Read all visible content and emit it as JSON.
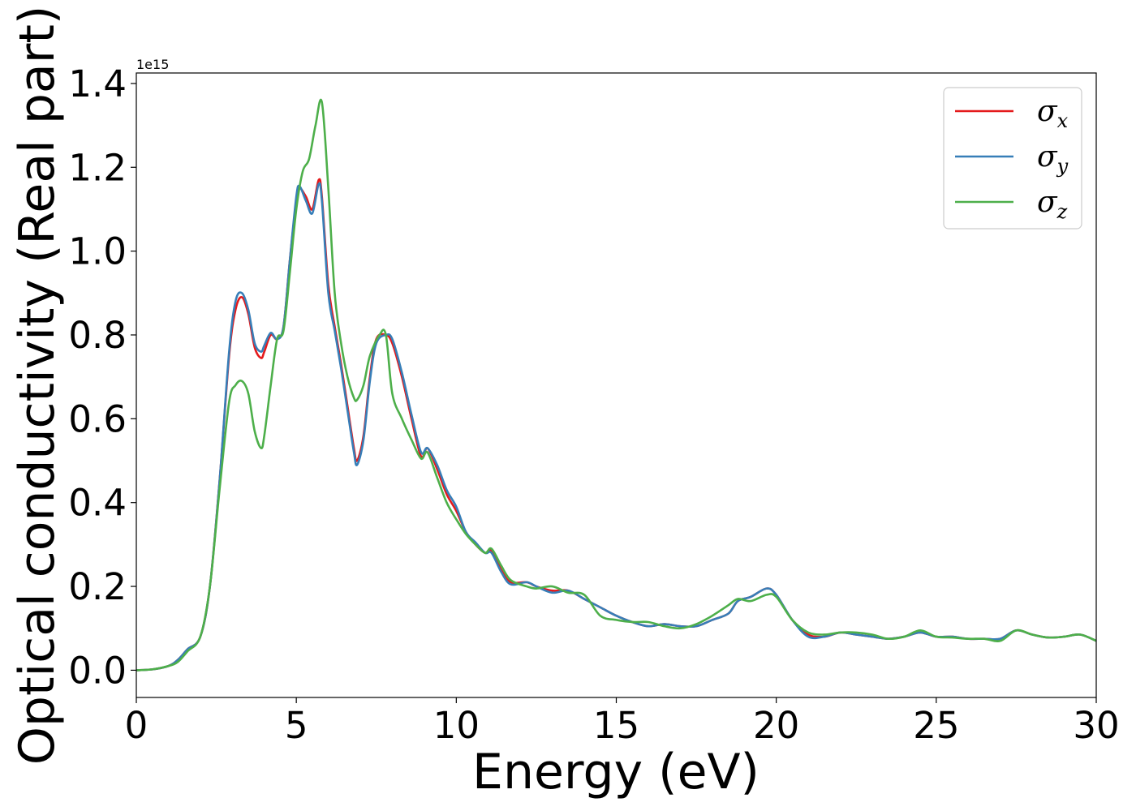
{
  "chart_data": {
    "type": "line",
    "xlabel": "Energy (eV)",
    "ylabel": "Optical conductivity (Real part)",
    "y_offset_label": "1e15",
    "xlim": [
      0,
      30
    ],
    "ylim": [
      -0.065,
      1.425
    ],
    "xticks": [
      0,
      5,
      10,
      15,
      20,
      25,
      30
    ],
    "xtick_labels": [
      "0",
      "5",
      "10",
      "15",
      "20",
      "25",
      "30"
    ],
    "yticks": [
      0.0,
      0.2,
      0.4,
      0.6,
      0.8,
      1.0,
      1.2,
      1.4
    ],
    "ytick_labels": [
      "0.0",
      "0.2",
      "0.4",
      "0.6",
      "0.8",
      "1.0",
      "1.2",
      "1.4"
    ],
    "grid": false,
    "legend_position": "top-right",
    "series": [
      {
        "name": "σx",
        "symbol": "σ",
        "subscript": "x",
        "color": "#e41a1c",
        "x": [
          0,
          0.5,
          1.0,
          1.3,
          1.6,
          2.0,
          2.3,
          2.6,
          2.9,
          3.1,
          3.3,
          3.5,
          3.7,
          3.9,
          4.0,
          4.2,
          4.4,
          4.6,
          4.8,
          5.0,
          5.1,
          5.3,
          5.5,
          5.7,
          5.8,
          6.0,
          6.2,
          6.4,
          6.6,
          6.8,
          6.9,
          7.1,
          7.3,
          7.5,
          7.8,
          8.0,
          8.3,
          8.6,
          8.9,
          9.1,
          9.4,
          9.7,
          10.0,
          10.3,
          10.6,
          10.9,
          11.1,
          11.4,
          11.7,
          12.2,
          12.5,
          13.0,
          13.5,
          14.0,
          14.5,
          15.0,
          15.5,
          16.0,
          16.5,
          17.0,
          17.5,
          18.0,
          18.5,
          18.8,
          19.2,
          19.7,
          20.0,
          20.5,
          21.0,
          21.5,
          22.0,
          22.5,
          23.0,
          23.5,
          24.0,
          24.5,
          25.0,
          25.5,
          26.0,
          26.5,
          27.0,
          27.5,
          28.0,
          28.5,
          29.0,
          29.5,
          30.0
        ],
        "y": [
          0,
          0.002,
          0.01,
          0.025,
          0.05,
          0.08,
          0.2,
          0.45,
          0.75,
          0.86,
          0.89,
          0.85,
          0.77,
          0.745,
          0.76,
          0.8,
          0.79,
          0.82,
          0.98,
          1.12,
          1.15,
          1.13,
          1.1,
          1.17,
          1.13,
          0.92,
          0.82,
          0.73,
          0.63,
          0.53,
          0.5,
          0.56,
          0.7,
          0.79,
          0.8,
          0.78,
          0.7,
          0.6,
          0.51,
          0.53,
          0.48,
          0.42,
          0.38,
          0.33,
          0.3,
          0.28,
          0.285,
          0.24,
          0.21,
          0.21,
          0.2,
          0.19,
          0.19,
          0.17,
          0.15,
          0.13,
          0.115,
          0.105,
          0.11,
          0.105,
          0.105,
          0.12,
          0.135,
          0.165,
          0.175,
          0.195,
          0.18,
          0.12,
          0.085,
          0.08,
          0.09,
          0.085,
          0.08,
          0.075,
          0.08,
          0.09,
          0.08,
          0.08,
          0.075,
          0.075,
          0.075,
          0.095,
          0.085,
          0.078,
          0.08,
          0.085,
          0.07
        ]
      },
      {
        "name": "σy",
        "symbol": "σ",
        "subscript": "y",
        "color": "#377eb8",
        "x": [
          0,
          0.5,
          1.0,
          1.3,
          1.6,
          2.0,
          2.3,
          2.6,
          2.9,
          3.1,
          3.3,
          3.5,
          3.7,
          3.9,
          4.0,
          4.2,
          4.4,
          4.6,
          4.8,
          5.0,
          5.1,
          5.3,
          5.5,
          5.7,
          5.8,
          6.0,
          6.2,
          6.4,
          6.6,
          6.8,
          6.9,
          7.1,
          7.3,
          7.5,
          7.8,
          8.0,
          8.3,
          8.6,
          8.9,
          9.1,
          9.4,
          9.7,
          10.0,
          10.3,
          10.6,
          10.9,
          11.1,
          11.4,
          11.7,
          12.2,
          12.5,
          13.0,
          13.5,
          14.0,
          14.5,
          15.0,
          15.5,
          16.0,
          16.5,
          17.0,
          17.5,
          18.0,
          18.5,
          18.8,
          19.2,
          19.7,
          20.0,
          20.5,
          21.0,
          21.5,
          22.0,
          22.5,
          23.0,
          23.5,
          24.0,
          24.5,
          25.0,
          25.5,
          26.0,
          26.5,
          27.0,
          27.5,
          28.0,
          28.5,
          29.0,
          29.5,
          30.0
        ],
        "y": [
          0,
          0.002,
          0.01,
          0.025,
          0.05,
          0.08,
          0.2,
          0.45,
          0.76,
          0.88,
          0.9,
          0.86,
          0.78,
          0.76,
          0.775,
          0.805,
          0.79,
          0.82,
          0.98,
          1.13,
          1.155,
          1.12,
          1.09,
          1.16,
          1.12,
          0.9,
          0.81,
          0.72,
          0.62,
          0.52,
          0.49,
          0.55,
          0.69,
          0.78,
          0.8,
          0.79,
          0.71,
          0.61,
          0.52,
          0.53,
          0.49,
          0.43,
          0.39,
          0.33,
          0.305,
          0.28,
          0.28,
          0.235,
          0.205,
          0.21,
          0.2,
          0.185,
          0.19,
          0.17,
          0.15,
          0.13,
          0.115,
          0.105,
          0.11,
          0.105,
          0.105,
          0.12,
          0.135,
          0.165,
          0.175,
          0.195,
          0.18,
          0.12,
          0.08,
          0.08,
          0.09,
          0.085,
          0.08,
          0.075,
          0.08,
          0.09,
          0.08,
          0.08,
          0.075,
          0.075,
          0.075,
          0.095,
          0.085,
          0.078,
          0.08,
          0.085,
          0.07
        ]
      },
      {
        "name": "σz",
        "symbol": "σ",
        "subscript": "z",
        "color": "#4daf4a",
        "x": [
          0,
          0.5,
          1.0,
          1.3,
          1.6,
          2.0,
          2.3,
          2.6,
          2.9,
          3.1,
          3.3,
          3.5,
          3.7,
          3.9,
          4.0,
          4.2,
          4.4,
          4.6,
          4.8,
          5.0,
          5.2,
          5.4,
          5.6,
          5.8,
          6.0,
          6.2,
          6.4,
          6.6,
          6.8,
          6.9,
          7.1,
          7.3,
          7.6,
          7.8,
          8.0,
          8.3,
          8.6,
          8.9,
          9.1,
          9.4,
          9.7,
          10.0,
          10.3,
          10.6,
          10.9,
          11.1,
          11.4,
          11.7,
          12.2,
          12.5,
          13.0,
          13.5,
          14.0,
          14.5,
          15.0,
          15.5,
          16.0,
          16.5,
          17.0,
          17.5,
          18.0,
          18.5,
          18.8,
          19.2,
          19.7,
          20.0,
          20.5,
          21.0,
          21.5,
          22.0,
          22.5,
          23.0,
          23.5,
          24.0,
          24.5,
          25.0,
          25.5,
          26.0,
          26.5,
          27.0,
          27.5,
          28.0,
          28.5,
          29.0,
          29.5,
          30.0
        ],
        "y": [
          0,
          0.002,
          0.01,
          0.02,
          0.045,
          0.08,
          0.2,
          0.43,
          0.64,
          0.68,
          0.69,
          0.66,
          0.57,
          0.53,
          0.56,
          0.68,
          0.79,
          0.81,
          0.95,
          1.1,
          1.19,
          1.22,
          1.3,
          1.355,
          1.15,
          0.9,
          0.78,
          0.7,
          0.65,
          0.645,
          0.68,
          0.75,
          0.8,
          0.8,
          0.66,
          0.6,
          0.55,
          0.505,
          0.52,
          0.46,
          0.4,
          0.36,
          0.325,
          0.3,
          0.28,
          0.29,
          0.25,
          0.215,
          0.2,
          0.195,
          0.2,
          0.185,
          0.18,
          0.13,
          0.12,
          0.115,
          0.115,
          0.105,
          0.1,
          0.11,
          0.13,
          0.155,
          0.17,
          0.165,
          0.18,
          0.175,
          0.12,
          0.09,
          0.085,
          0.09,
          0.09,
          0.085,
          0.075,
          0.08,
          0.095,
          0.08,
          0.078,
          0.075,
          0.075,
          0.07,
          0.095,
          0.085,
          0.078,
          0.08,
          0.085,
          0.07
        ]
      }
    ]
  }
}
